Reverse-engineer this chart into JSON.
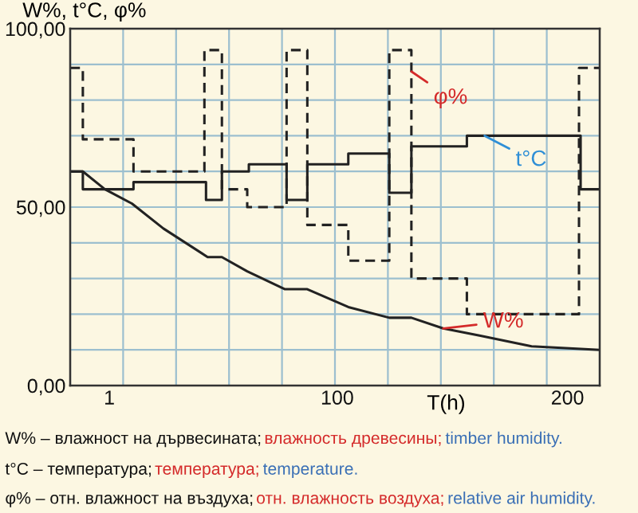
{
  "chart_data": {
    "type": "step",
    "ylabel": "W%, t°C, φ%",
    "xlabel": "T(h)",
    "xlim": [
      -16,
      214
    ],
    "xticks": [
      {
        "value": -16,
        "label": null
      },
      1,
      {
        "value": 7,
        "label": null
      },
      {
        "value": 30,
        "label": null
      },
      {
        "value": 53,
        "label": null
      },
      {
        "value": 76,
        "label": null
      },
      {
        "value": 99,
        "label": null
      },
      100,
      {
        "value": 122,
        "label": null
      },
      {
        "value": 145,
        "label": null
      },
      {
        "value": 168,
        "label": null
      },
      {
        "value": 191,
        "label": null
      },
      200,
      {
        "value": 214,
        "label": null
      }
    ],
    "ylim": [
      0,
      100
    ],
    "yticks": [
      {
        "value": 0,
        "label": "0,00"
      },
      {
        "value": 10,
        "label": null
      },
      {
        "value": 20,
        "label": null
      },
      {
        "value": 30,
        "label": null
      },
      {
        "value": 40,
        "label": null
      },
      {
        "value": 50,
        "label": "50,00"
      },
      {
        "value": 60,
        "label": null
      },
      {
        "value": 70,
        "label": null
      },
      {
        "value": 80,
        "label": null
      },
      {
        "value": 90,
        "label": null
      },
      {
        "value": 100,
        "label": "100,00"
      }
    ],
    "grid": true,
    "legend": false,
    "series": [
      {
        "color": "#222222",
        "line_style": "dashed",
        "x": [
          -16,
          -10.5,
          11.5,
          42.3,
          49.9,
          60.9,
          78,
          87,
          104.8,
          122.6,
          132.2,
          156.3,
          205,
          214
        ],
        "values": [
          89,
          69,
          60,
          94,
          55,
          50,
          94,
          45,
          35,
          94,
          30,
          20,
          89,
          89
        ]
      },
      {
        "color": "#222222",
        "line_style": "solid",
        "x": [
          -16,
          -10.5,
          11.5,
          43,
          49.9,
          61.6,
          78,
          87,
          104.8,
          122.6,
          132.2,
          156.3,
          205.7,
          214
        ],
        "values": [
          60,
          55,
          57,
          52,
          60,
          62,
          52,
          62,
          65,
          54,
          67,
          70,
          55,
          55
        ]
      },
      {
        "type": "line",
        "color": "#222222",
        "line_style": "solid",
        "x": [
          -16,
          -10.5,
          -0.9,
          10.8,
          24.5,
          43.7,
          49.9,
          60.9,
          77.3,
          87,
          104.8,
          122.6,
          132.2,
          146,
          161.8,
          184.4,
          214
        ],
        "values": [
          60,
          60,
          55,
          51,
          44,
          36,
          36,
          32,
          27,
          27,
          22,
          19,
          19,
          16,
          14,
          11,
          10
        ]
      }
    ],
    "annotations": [
      {
        "text": "φ%",
        "x": 132.2,
        "y": 88
      },
      {
        "text": "t°C",
        "x": 164,
        "y": 70
      },
      {
        "text": "W%",
        "x": 146,
        "y": 16
      },
      "W% – влажност на дървесината;",
      "влажность древесины;",
      "timber humidity.",
      "t°C – температура;",
      "температура;",
      "temperature.",
      "φ% – отн. влажност на въздуха;",
      "отн. влажность воздуха;",
      "relative air humidity."
    ]
  }
}
